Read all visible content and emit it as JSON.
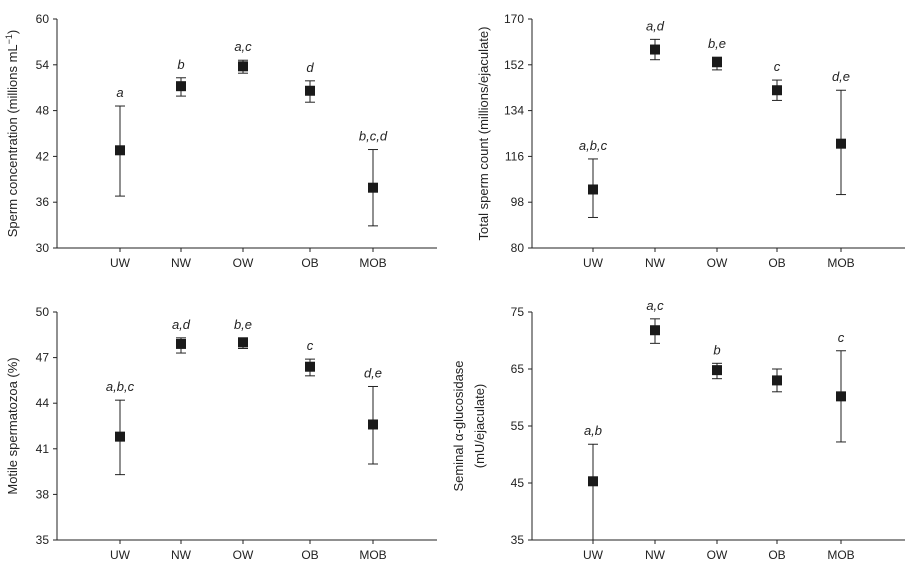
{
  "chart_data": [
    {
      "type": "scatter",
      "ylabel": "Sperm concentration (millions mL",
      "ylabel_sup": "−1",
      "ylabel_close": ")",
      "categories": [
        "UW",
        "NW",
        "OW",
        "OB",
        "MOB"
      ],
      "ylim": [
        30,
        60
      ],
      "yticks": [
        30,
        36,
        42,
        48,
        54,
        60
      ],
      "values": [
        42.8,
        51.2,
        53.8,
        50.6,
        37.9
      ],
      "err_low": [
        36.8,
        49.9,
        52.9,
        49.1,
        32.9
      ],
      "err_high": [
        48.6,
        52.3,
        54.6,
        51.9,
        42.9
      ],
      "sig": [
        "a",
        "b",
        "a,c",
        "d",
        "b,c,d"
      ]
    },
    {
      "type": "scatter",
      "ylabel": "Total sperm count (millions/ejaculate)",
      "categories": [
        "UW",
        "NW",
        "OW",
        "OB",
        "MOB"
      ],
      "ylim": [
        80,
        170
      ],
      "yticks": [
        80,
        98,
        116,
        134,
        152,
        170
      ],
      "values": [
        103,
        158,
        153,
        142,
        121
      ],
      "err_low": [
        92,
        154,
        150,
        138,
        101
      ],
      "err_high": [
        115,
        162,
        155,
        146,
        142
      ],
      "sig": [
        "a,b,c",
        "a,d",
        "b,e",
        "c",
        "d,e"
      ]
    },
    {
      "type": "scatter",
      "ylabel": "Motile spermatozoa (%)",
      "categories": [
        "UW",
        "NW",
        "OW",
        "OB",
        "MOB"
      ],
      "ylim": [
        35,
        50
      ],
      "yticks": [
        35,
        38,
        41,
        44,
        47,
        50
      ],
      "values": [
        41.8,
        47.9,
        48.0,
        46.4,
        42.6
      ],
      "err_low": [
        39.3,
        47.3,
        47.6,
        45.8,
        40.0
      ],
      "err_high": [
        44.2,
        48.3,
        48.3,
        46.9,
        45.1
      ],
      "sig": [
        "a,b,c",
        "a,d",
        "b,e",
        "c",
        "d,e"
      ]
    },
    {
      "type": "scatter",
      "ylabel": "Seminal α-glucosidase",
      "ylabel2": "(mU/ejaculate)",
      "categories": [
        "UW",
        "NW",
        "OW",
        "OB",
        "MOB"
      ],
      "ylim": [
        35,
        75
      ],
      "yticks": [
        35,
        45,
        55,
        65,
        75
      ],
      "values": [
        45.3,
        71.8,
        64.8,
        63.0,
        60.2
      ],
      "err_low": [
        35,
        69.5,
        63.3,
        61.0,
        52.2
      ],
      "err_high": [
        51.8,
        73.8,
        66.0,
        65.0,
        68.2
      ],
      "sig": [
        "a,b",
        "a,c",
        "b",
        "",
        "c"
      ]
    }
  ]
}
